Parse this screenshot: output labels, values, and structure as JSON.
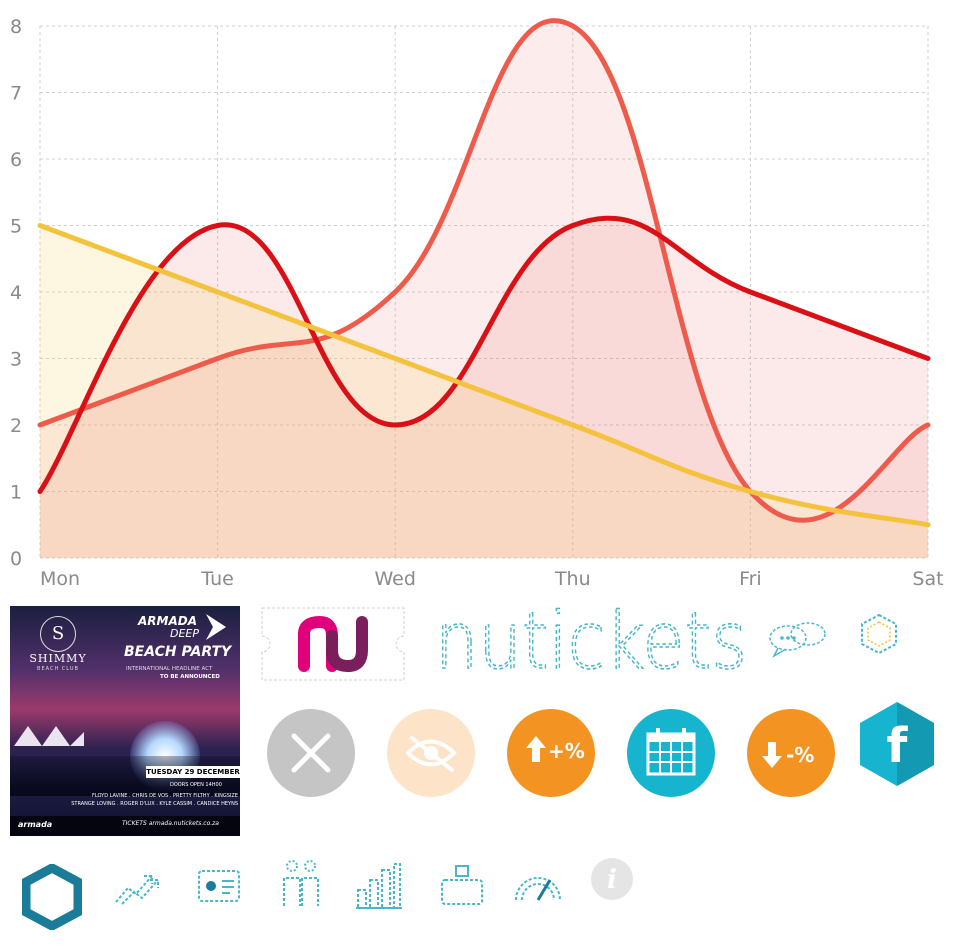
{
  "chart_data": {
    "type": "area",
    "categories": [
      "Mon",
      "Tue",
      "Wed",
      "Thu",
      "Fri",
      "Sat"
    ],
    "ylim": [
      0,
      8
    ],
    "yticks": [
      0,
      1,
      2,
      3,
      4,
      5,
      6,
      7,
      8
    ],
    "grid": true,
    "series": [
      {
        "values": [
          2,
          3,
          4,
          8,
          1,
          2
        ],
        "color": "#ef5b4b",
        "fill": "rgba(245,150,150,0.18)"
      },
      {
        "values": [
          1,
          5,
          2,
          5,
          4,
          3
        ],
        "color": "#d91015",
        "fill": "rgba(235,120,120,0.16)"
      },
      {
        "values": [
          5,
          4,
          3,
          2,
          1,
          0.5
        ],
        "color": "#f4c23c",
        "fill": "rgba(248,212,120,0.22)"
      }
    ]
  },
  "poster": {
    "crest": "S",
    "club": "SHIMMY",
    "club_sub": "BEACH CLUB",
    "brand": "ARMADA",
    "brand2": "DEEP",
    "title": "BEACH PARTY",
    "headline": "INTERNATIONAL HEADLINE ACT",
    "tba": "TO BE ANNOUNCED",
    "date": "TUESDAY 29 DECEMBER",
    "doors": "DOORS OPEN 14H00",
    "lineup1": "FLOYD LAVINE . CHRIS DE VOS . PRETTY FILTHY . KINGSIZE",
    "lineup2": "STRANGE LOVING . ROGER D'LUX . KYLE CASSIM . CANDICE HEYNS",
    "footer_logo": "armada",
    "footer_tickets": "TICKETS  armada.nutickets.co.za"
  },
  "wordmark": "nutickets",
  "colors": {
    "nu_pink": "#e0007a",
    "nu_purple": "#7a1f5c",
    "teal": "#17b4cf",
    "orange": "#f39422",
    "gray": "#c5c5c5",
    "peach": "#fde3c8",
    "dark_teal": "#1a7c98"
  },
  "circle_buttons": [
    {
      "icon": "close-icon",
      "color": "#c5c5c5"
    },
    {
      "icon": "eye-off-icon",
      "color": "#fde3c8"
    },
    {
      "icon": "increase-percent-icon",
      "color": "#f39422",
      "label": "+%"
    },
    {
      "icon": "calendar-icon",
      "color": "#17b4cf"
    },
    {
      "icon": "decrease-percent-icon",
      "color": "#f39422",
      "label": "-%"
    }
  ],
  "facebook_letter": "f",
  "bottom_icons": [
    "hexagon-icon",
    "trend-up-icon",
    "id-card-icon",
    "people-icon",
    "bar-chart-icon",
    "scale-icon",
    "speedometer-icon",
    "info-icon"
  ],
  "info_letter": "i"
}
